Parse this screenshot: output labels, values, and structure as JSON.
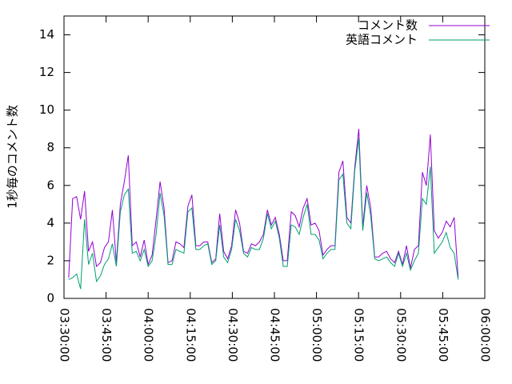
{
  "chart_data": {
    "type": "line",
    "y_label": "1秒毎のコメント数",
    "x": [
      12700,
      12785,
      12870,
      12955,
      13040,
      13125,
      13210,
      13295,
      13380,
      13465,
      13550,
      13635,
      13720,
      13805,
      13890,
      13975,
      14060,
      14145,
      14230,
      14315,
      14400,
      14485,
      14570,
      14655,
      14740,
      14825,
      14910,
      14995,
      15080,
      15165,
      15250,
      15335,
      15420,
      15505,
      15590,
      15675,
      15760,
      15845,
      15930,
      16015,
      16100,
      16185,
      16270,
      16355,
      16440,
      16525,
      16610,
      16695,
      16780,
      16865,
      16950,
      17035,
      17120,
      17205,
      17290,
      17375,
      17460,
      17545,
      17630,
      17715,
      17800,
      17885,
      17970,
      18055,
      18140,
      18225,
      18310,
      18395,
      18480,
      18565,
      18650,
      18735,
      18820,
      18905,
      18990,
      19075,
      19160,
      19245,
      19330,
      19415,
      19500,
      19585,
      19670,
      19755,
      19840,
      19925,
      20010,
      20095,
      20180,
      20265,
      20350,
      20435,
      20520,
      20605,
      20690,
      20775,
      20860,
      20945,
      21030
    ],
    "series": [
      {
        "name": "コメント数",
        "color": "#9400d3",
        "values": [
          1.1,
          5.3,
          5.4,
          4.2,
          5.7,
          2.5,
          3.0,
          1.7,
          1.9,
          2.7,
          3.0,
          4.7,
          1.9,
          5.0,
          6.2,
          7.6,
          2.8,
          3.0,
          2.2,
          3.1,
          1.8,
          2.3,
          4.2,
          6.2,
          4.8,
          1.9,
          2.0,
          3.0,
          2.9,
          2.7,
          4.9,
          5.5,
          2.8,
          2.8,
          3.0,
          3.0,
          1.9,
          2.1,
          4.5,
          2.5,
          2.1,
          2.8,
          4.7,
          4.0,
          2.5,
          2.4,
          2.9,
          2.8,
          3.0,
          3.4,
          4.7,
          3.9,
          4.3,
          3.4,
          2.0,
          2.0,
          4.6,
          4.4,
          3.8,
          4.8,
          5.3,
          3.9,
          4.0,
          3.6,
          2.3,
          2.6,
          2.8,
          2.8,
          6.7,
          7.3,
          4.3,
          4.0,
          7.0,
          9.0,
          3.8,
          6.0,
          4.8,
          2.2,
          2.2,
          2.4,
          2.5,
          2.1,
          1.9,
          2.5,
          1.8,
          2.8,
          1.6,
          2.6,
          2.8,
          6.7,
          6.0,
          8.7,
          3.6,
          3.2,
          3.5,
          4.1,
          3.8,
          4.3,
          1.1
        ]
      },
      {
        "name": "英語コメント",
        "color": "#009e73",
        "values": [
          1.0,
          1.1,
          1.3,
          0.5,
          4.2,
          1.8,
          2.4,
          0.9,
          1.2,
          1.8,
          2.1,
          2.9,
          1.7,
          4.6,
          5.5,
          5.8,
          2.4,
          2.5,
          2.0,
          2.6,
          1.7,
          2.0,
          3.4,
          5.6,
          4.4,
          1.8,
          1.8,
          2.6,
          2.5,
          2.4,
          4.6,
          4.8,
          2.6,
          2.6,
          2.8,
          2.9,
          1.8,
          2.0,
          3.9,
          2.2,
          1.9,
          2.6,
          4.2,
          3.6,
          2.4,
          2.2,
          2.7,
          2.6,
          2.6,
          3.2,
          4.5,
          3.7,
          4.1,
          3.2,
          1.7,
          1.7,
          3.9,
          3.8,
          3.4,
          4.3,
          5.0,
          3.4,
          3.4,
          3.1,
          2.1,
          2.4,
          2.6,
          2.6,
          6.3,
          6.6,
          4.0,
          3.7,
          6.8,
          8.5,
          3.6,
          5.6,
          4.4,
          2.1,
          2.0,
          2.1,
          2.2,
          1.9,
          1.7,
          2.4,
          1.7,
          2.4,
          1.5,
          2.0,
          2.4,
          5.3,
          5.0,
          7.0,
          2.4,
          2.7,
          3.0,
          3.5,
          2.7,
          2.4,
          1.0
        ]
      }
    ],
    "xlim": [
      12600,
      21600
    ],
    "xticks": [
      {
        "value": 12600,
        "label": "03:30:00"
      },
      {
        "value": 13500,
        "label": "03:45:00"
      },
      {
        "value": 14400,
        "label": "04:00:00"
      },
      {
        "value": 15300,
        "label": "04:15:00"
      },
      {
        "value": 16200,
        "label": "04:30:00"
      },
      {
        "value": 17100,
        "label": "04:45:00"
      },
      {
        "value": 18000,
        "label": "05:00:00"
      },
      {
        "value": 18900,
        "label": "05:15:00"
      },
      {
        "value": 19800,
        "label": "05:30:00"
      },
      {
        "value": 20700,
        "label": "05:45:00"
      },
      {
        "value": 21600,
        "label": "06:00:00"
      }
    ],
    "ylim": [
      0,
      15
    ],
    "yticks": [
      0,
      2,
      4,
      6,
      8,
      10,
      12,
      14
    ],
    "legend": "top-right"
  }
}
